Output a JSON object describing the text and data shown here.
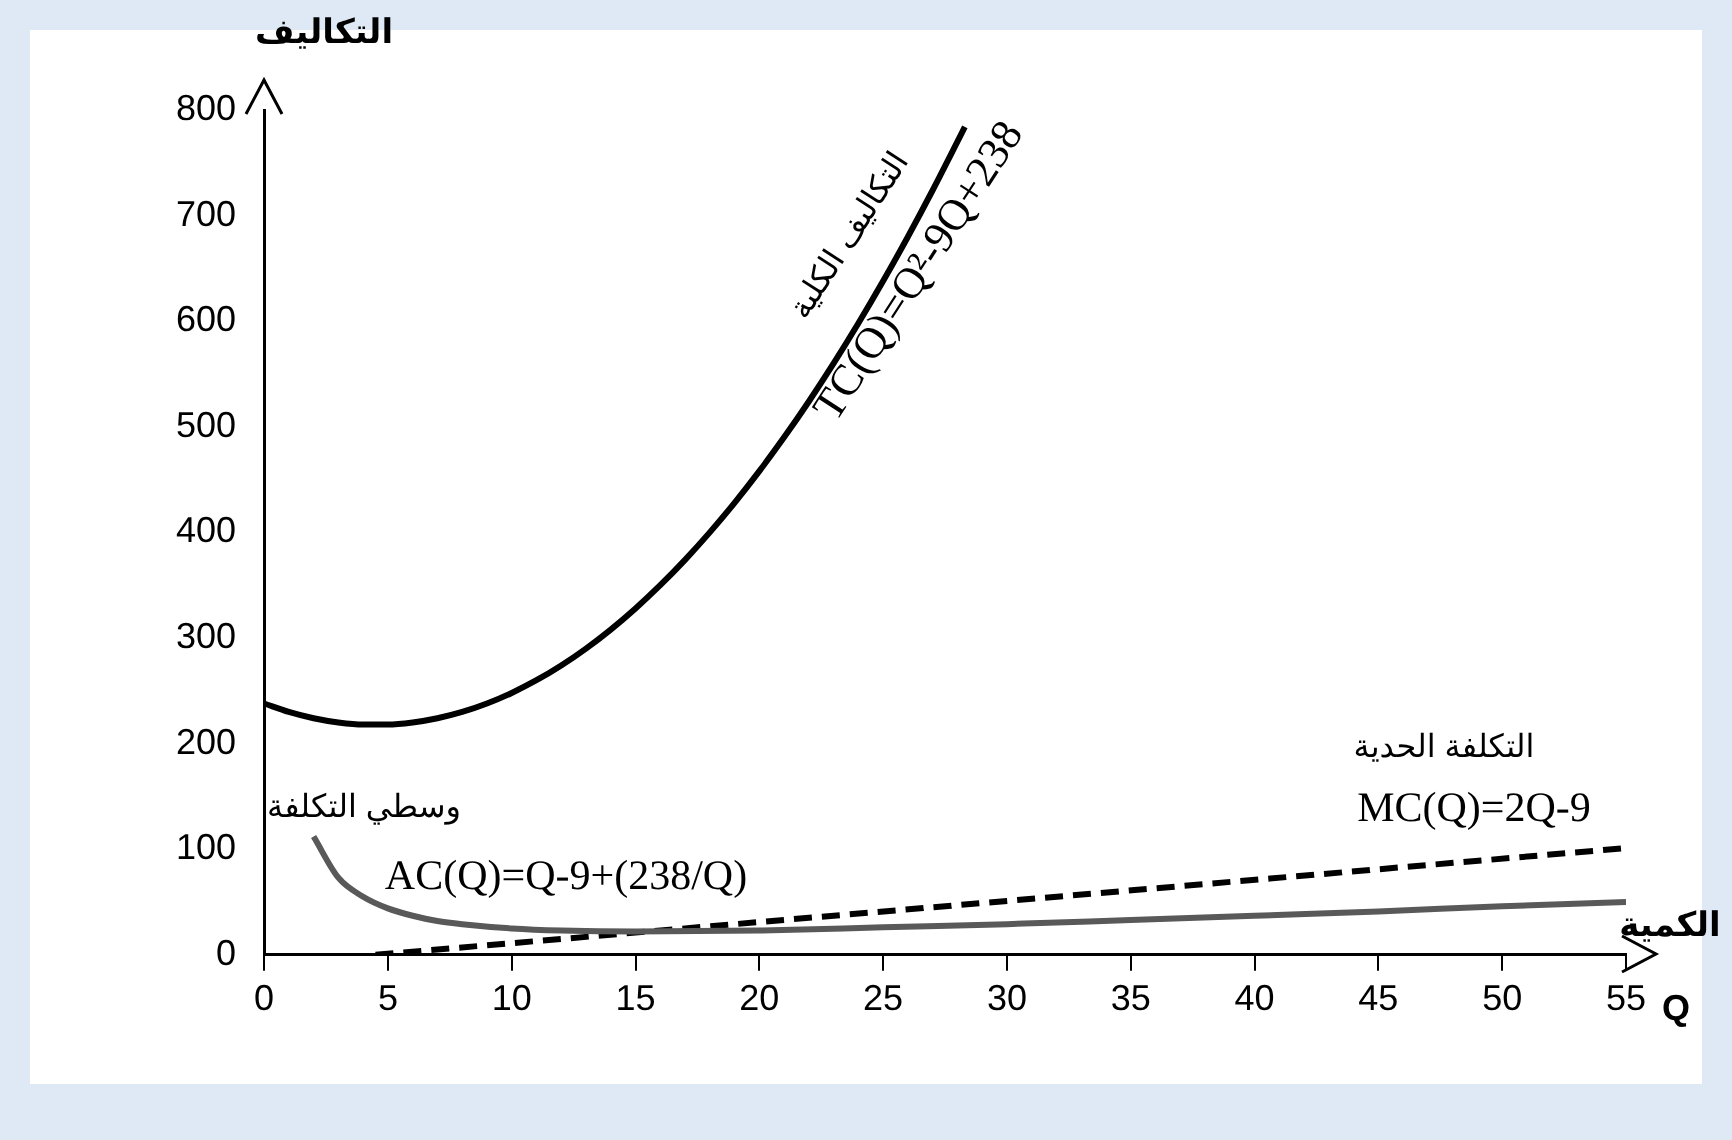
{
  "chart_data": {
    "type": "line",
    "xlabel": "الكمية",
    "ylabel": "التكاليف",
    "xlim": [
      0,
      55
    ],
    "xticks": [
      0,
      5,
      10,
      15,
      20,
      25,
      30,
      35,
      40,
      45,
      50,
      55
    ],
    "ylim": [
      0,
      800
    ],
    "yticks": [
      0,
      100,
      200,
      300,
      400,
      500,
      600,
      700,
      800
    ],
    "grid": false,
    "legend": false,
    "marker": "none",
    "series": [
      {
        "name": "التكاليف الكلية",
        "color": "#000000",
        "line_style": "solid",
        "x": [
          0,
          1,
          2,
          3,
          4,
          5,
          6,
          7,
          8,
          9,
          10,
          11,
          12,
          13,
          14,
          15,
          16,
          17,
          18,
          19,
          20,
          21,
          22,
          23,
          24,
          25,
          26,
          27,
          28,
          28.3
        ],
        "values": [
          238,
          230,
          224,
          220,
          218,
          218,
          220,
          224,
          230,
          238,
          248,
          260,
          274,
          290,
          308,
          328,
          350,
          374,
          400,
          428,
          458,
          490,
          524,
          560,
          598,
          638,
          680,
          724,
          770,
          784
        ]
      },
      {
        "name": "وسطي التكلفة",
        "color": "#595959",
        "line_style": "solid",
        "x": [
          2,
          3,
          4,
          5,
          6,
          7,
          8,
          10,
          12,
          15,
          20,
          25,
          30,
          35,
          40,
          45,
          50,
          55
        ],
        "values": [
          112,
          73,
          55,
          44,
          37,
          32,
          29,
          25,
          23,
          22,
          23,
          26,
          29,
          33,
          37,
          41,
          46,
          50
        ]
      },
      {
        "name": "التكلفة الحدية",
        "color": "#000000",
        "line_style": "dashed",
        "x": [
          4.5,
          55
        ],
        "values": [
          0,
          101
        ]
      }
    ],
    "annotations": [
      "TC(Q)=Q²-9Q+238",
      "AC(Q)=Q-9+(238/Q)",
      "MC(Q)=2Q-9",
      "Q"
    ]
  }
}
